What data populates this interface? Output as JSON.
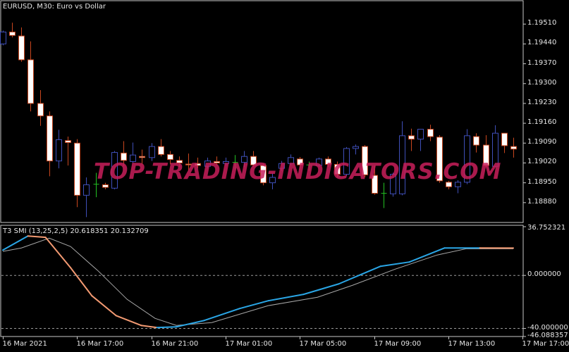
{
  "chart_data": [
    {
      "type": "candlestick",
      "title": "EURUSD, M30:  Euro vs  Dollar",
      "y_ticks": [
        "1.19510",
        "1.19440",
        "1.19370",
        "1.19300",
        "1.19230",
        "1.19160",
        "1.19090",
        "1.19020",
        "1.18950",
        "1.18880"
      ],
      "ylim": [
        1.1881,
        1.1959
      ],
      "colors": {
        "bull": "#3f4fb8",
        "bear_fill": "#ffffff",
        "bear_outline": "#c8461e",
        "doji": "#22c022",
        "wick_bear": "#c8461e"
      },
      "candles_ohlc": [
        [
          1.1944,
          1.19487,
          1.19435,
          1.19482
        ],
        [
          1.19482,
          1.19515,
          1.19463,
          1.1947
        ],
        [
          1.19468,
          1.19498,
          1.19377,
          1.19384
        ],
        [
          1.19384,
          1.19449,
          1.19202,
          1.1923
        ],
        [
          1.1923,
          1.19277,
          1.19151,
          1.19186
        ],
        [
          1.19186,
          1.19202,
          1.18973,
          1.19027
        ],
        [
          1.19027,
          1.19137,
          1.19001,
          1.19102
        ],
        [
          1.19099,
          1.19113,
          1.19011,
          1.19092
        ],
        [
          1.1909,
          1.19104,
          1.18864,
          1.18906
        ],
        [
          1.18906,
          1.18969,
          1.18829,
          1.18943
        ],
        [
          1.18945,
          1.18985,
          1.18899,
          1.18945
        ],
        [
          1.18943,
          1.1895,
          1.18927,
          1.18934
        ],
        [
          1.18931,
          1.19062,
          1.18927,
          1.19057
        ],
        [
          1.19055,
          1.19097,
          1.19008,
          1.19029
        ],
        [
          1.19025,
          1.19092,
          1.1902,
          1.19048
        ],
        [
          1.19043,
          1.19067,
          1.19015,
          1.19039
        ],
        [
          1.19039,
          1.1909,
          1.19027,
          1.19078
        ],
        [
          1.19078,
          1.19104,
          1.19043,
          1.1905
        ],
        [
          1.1905,
          1.19062,
          1.19015,
          1.19032
        ],
        [
          1.19029,
          1.19043,
          1.19006,
          1.1902
        ],
        [
          1.19016,
          1.19053,
          1.18992,
          1.19013
        ],
        [
          1.19018,
          1.19039,
          1.19001,
          1.19011
        ],
        [
          1.19008,
          1.19039,
          1.19001,
          1.19027
        ],
        [
          1.19025,
          1.19043,
          1.19011,
          1.1902
        ],
        [
          1.19018,
          1.19039,
          1.19011,
          1.19025
        ],
        [
          1.19022,
          1.19048,
          1.18997,
          1.19022
        ],
        [
          1.19022,
          1.19062,
          1.19006,
          1.19043
        ],
        [
          1.19043,
          1.19062,
          1.19006,
          1.19013
        ],
        [
          1.19011,
          1.19018,
          1.18941,
          1.1895
        ],
        [
          1.1895,
          1.18985,
          1.18927,
          1.18969
        ],
        [
          1.19001,
          1.19027,
          1.18992,
          1.19018
        ],
        [
          1.19018,
          1.1905,
          1.19011,
          1.19039
        ],
        [
          1.19034,
          1.19041,
          1.18997,
          1.19013
        ],
        [
          1.19013,
          1.19025,
          1.18992,
          1.19013
        ],
        [
          1.19011,
          1.19039,
          1.19006,
          1.19034
        ],
        [
          1.19034,
          1.19043,
          1.19006,
          1.19015
        ],
        [
          1.19015,
          1.19025,
          1.18969,
          1.1898
        ],
        [
          1.1898,
          1.19076,
          1.18973,
          1.19071
        ],
        [
          1.19071,
          1.19085,
          1.1905,
          1.19078
        ],
        [
          1.19078,
          1.19083,
          1.18969,
          1.18978
        ],
        [
          1.18976,
          1.19011,
          1.18908,
          1.18913
        ],
        [
          1.18913,
          1.1895,
          1.18861,
          1.18913
        ],
        [
          1.18911,
          1.18985,
          1.18901,
          1.1898
        ],
        [
          1.18911,
          1.19167,
          1.18906,
          1.19116
        ],
        [
          1.19116,
          1.19141,
          1.19062,
          1.19104
        ],
        [
          1.19104,
          1.19139,
          1.19062,
          1.19139
        ],
        [
          1.19139,
          1.19155,
          1.19097,
          1.19113
        ],
        [
          1.19111,
          1.19118,
          1.1895,
          1.18957
        ],
        [
          1.18952,
          1.18957,
          1.18927,
          1.18936
        ],
        [
          1.18936,
          1.18959,
          1.18913,
          1.18952
        ],
        [
          1.18952,
          1.19139,
          1.18945,
          1.19116
        ],
        [
          1.19113,
          1.19125,
          1.19057,
          1.19083
        ],
        [
          1.19083,
          1.19118,
          1.19006,
          1.19011
        ],
        [
          1.19008,
          1.19153,
          1.19006,
          1.19125
        ],
        [
          1.19125,
          1.19125,
          1.19055,
          1.19081
        ],
        [
          1.19078,
          1.19109,
          1.19039,
          1.19069
        ]
      ],
      "watermark": "TOP-TRADING-INDICATORS.COM"
    },
    {
      "type": "line",
      "title": "T3 SMI (13,25,2,5) 20.618351 20.132709",
      "y_ticks": [
        "36.752321",
        "0.000000",
        "-40.000000",
        "-46.088357"
      ],
      "ylim": [
        -46.088357,
        36.752321
      ],
      "levels": [
        0,
        -40
      ],
      "colors": {
        "rising": "#2aa6e6",
        "falling": "#f39a72",
        "signal": "#a8a8a8"
      },
      "series": [
        {
          "points": [
            [
              0,
              19.1
            ],
            [
              2.7,
              29.7
            ],
            [
              4.6,
              28.7
            ],
            [
              7.3,
              5.8
            ],
            [
              9.6,
              -15.4
            ],
            [
              12.2,
              -30.3
            ],
            [
              14.9,
              -37.7
            ],
            [
              16.6,
              -39.3
            ],
            [
              18.7,
              -38.8
            ],
            [
              21.7,
              -34.0
            ],
            [
              25.5,
              -25.0
            ],
            [
              28.6,
              -19.1
            ],
            [
              32.4,
              -14.3
            ],
            [
              36.2,
              -6.4
            ],
            [
              40.7,
              6.9
            ],
            [
              43.8,
              10.1
            ],
            [
              47.6,
              20.7
            ],
            [
              51.4,
              20.7
            ],
            [
              55,
              20.6
            ]
          ]
        },
        {
          "points": [
            [
              0,
              18.1
            ],
            [
              2.0,
              20.7
            ],
            [
              5.0,
              28.1
            ],
            [
              7.3,
              21.8
            ],
            [
              10.3,
              3.2
            ],
            [
              13.4,
              -18.1
            ],
            [
              16.4,
              -32.4
            ],
            [
              18.7,
              -37.7
            ],
            [
              22.5,
              -35.6
            ],
            [
              28.6,
              -22.8
            ],
            [
              33.9,
              -16.5
            ],
            [
              37.7,
              -7.4
            ],
            [
              42.3,
              4.8
            ],
            [
              46.8,
              15.4
            ],
            [
              49.9,
              20.1
            ],
            [
              55,
              20.1
            ]
          ]
        }
      ]
    }
  ],
  "time_axis": [
    "16 Mar 2021",
    "16 Mar 17:00",
    "16 Mar 21:00",
    "17 Mar 01:00",
    "17 Mar 05:00",
    "17 Mar 09:00",
    "17 Mar 13:00",
    "17 Mar 17:00"
  ]
}
